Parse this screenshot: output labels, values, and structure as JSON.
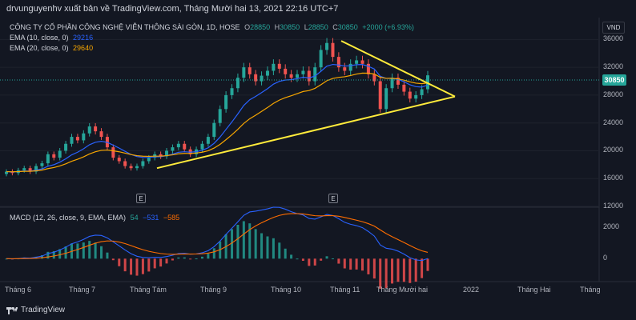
{
  "header": {
    "publish_line": "drvunguyenhv xuất bản về TradingView.com, Tháng Mười hai 13, 2021 22:16 UTC+7"
  },
  "legend": {
    "symbol": "CÔNG TY CỔ PHẦN CÔNG NGHỆ VIỄN THÔNG SÀI GÒN, 1D, HOSE",
    "o_label": "O",
    "o_value": "28850",
    "h_label": "H",
    "h_value": "30850",
    "l_label": "L",
    "l_value": "28850",
    "c_label": "C",
    "c_value": "30850",
    "change": "+2000 (+6.93%)",
    "ema10_label": "EMA (10, close, 0)",
    "ema10_value": "29216",
    "ema20_label": "EMA (20, close, 0)",
    "ema20_value": "29640",
    "macd_label": "MACD (12, 26, close, 9, EMA, EMA)",
    "macd_hist": "54",
    "macd_line": "−531",
    "macd_signal": "−585"
  },
  "price_axis": {
    "currency": "VND",
    "ticks": [
      "36000",
      "32000",
      "28000",
      "24000",
      "20000",
      "16000",
      "12000"
    ],
    "last_price": "30850"
  },
  "macd_axis": {
    "ticks": [
      "2000",
      "0"
    ]
  },
  "time_axis": {
    "labels": [
      "Tháng 6",
      "Tháng 7",
      "Tháng Tám",
      "Tháng 9",
      "Tháng 10",
      "Tháng 11",
      "Tháng Mười hai",
      "2022",
      "Tháng Hai",
      "Tháng"
    ]
  },
  "earnings_badges": [
    "E",
    "E"
  ],
  "footer": {
    "brand": "TradingView"
  },
  "colors": {
    "background": "#131722",
    "up": "#26a69a",
    "down": "#ef5350",
    "ema10": "#2962ff",
    "ema20": "#f7a600",
    "trendline": "#ffeb3b",
    "macd_line": "#2962ff",
    "signal_line": "#ff6d00"
  },
  "chart_data": {
    "type": "candlestick",
    "price_range": [
      12000,
      38000
    ],
    "series_close": [
      17000,
      16800,
      17200,
      17500,
      17000,
      17800,
      18200,
      19500,
      19000,
      20000,
      21000,
      22000,
      21500,
      22500,
      23500,
      22800,
      22000,
      20500,
      19000,
      18500,
      17800,
      17500,
      17800,
      18500,
      19000,
      19500,
      19200,
      20000,
      20500,
      21000,
      20200,
      19500,
      20200,
      21000,
      22000,
      24000,
      26000,
      28000,
      29000,
      30500,
      32000,
      31000,
      30000,
      30800,
      31500,
      32500,
      31800,
      31000,
      30500,
      31000,
      31500,
      30000,
      32000,
      34500,
      35500,
      33500,
      32000,
      31500,
      32500,
      33000,
      32500,
      31000,
      30000,
      26000,
      29000,
      30500,
      29500,
      28500,
      27500,
      28000,
      28850,
      30850
    ],
    "ema10_last": 29216,
    "ema20_last": 29640,
    "macd_last": {
      "histogram": 54,
      "macd": -531,
      "signal": -585
    }
  }
}
